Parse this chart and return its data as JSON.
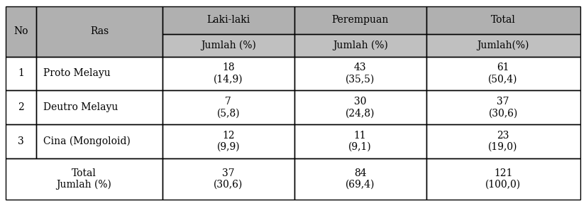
{
  "header_row1": [
    "No",
    "Ras",
    "Laki-laki",
    "Perempuan",
    "Total"
  ],
  "header_row2": [
    "",
    "",
    "Jumlah (%)",
    "Jumlah (%)",
    "Jumlah(%)"
  ],
  "rows": [
    {
      "no": "1",
      "ras": "Proto Melayu",
      "laki_n": "18",
      "laki_p": "(14,9)",
      "perempuan_n": "43",
      "perempuan_p": "(35,5)",
      "total_n": "61",
      "total_p": "(50,4)"
    },
    {
      "no": "2",
      "ras": "Deutro Melayu",
      "laki_n": "7",
      "laki_p": "(5,8)",
      "perempuan_n": "30",
      "perempuan_p": "(24,8)",
      "total_n": "37",
      "total_p": "(30,6)"
    },
    {
      "no": "3",
      "ras": "Cina (Mongoloid)",
      "laki_n": "12",
      "laki_p": "(9,9)",
      "perempuan_n": "11",
      "perempuan_p": "(9,1)",
      "total_n": "23",
      "total_p": "(19,0)"
    }
  ],
  "total_row": {
    "label1": "Total",
    "label2": "Jumlah (%)",
    "laki_n": "37",
    "laki_p": "(30,6)",
    "perempuan_n": "84",
    "perempuan_p": "(69,4)",
    "total_n": "121",
    "total_p": "(100,0)"
  },
  "header_bg": "#b0b0b0",
  "header_subrow_bg": "#c0c0c0",
  "data_bg": "#ffffff",
  "border_color": "#000000",
  "text_color": "#000000",
  "font_size": 10,
  "figure_bg": "#ffffff"
}
